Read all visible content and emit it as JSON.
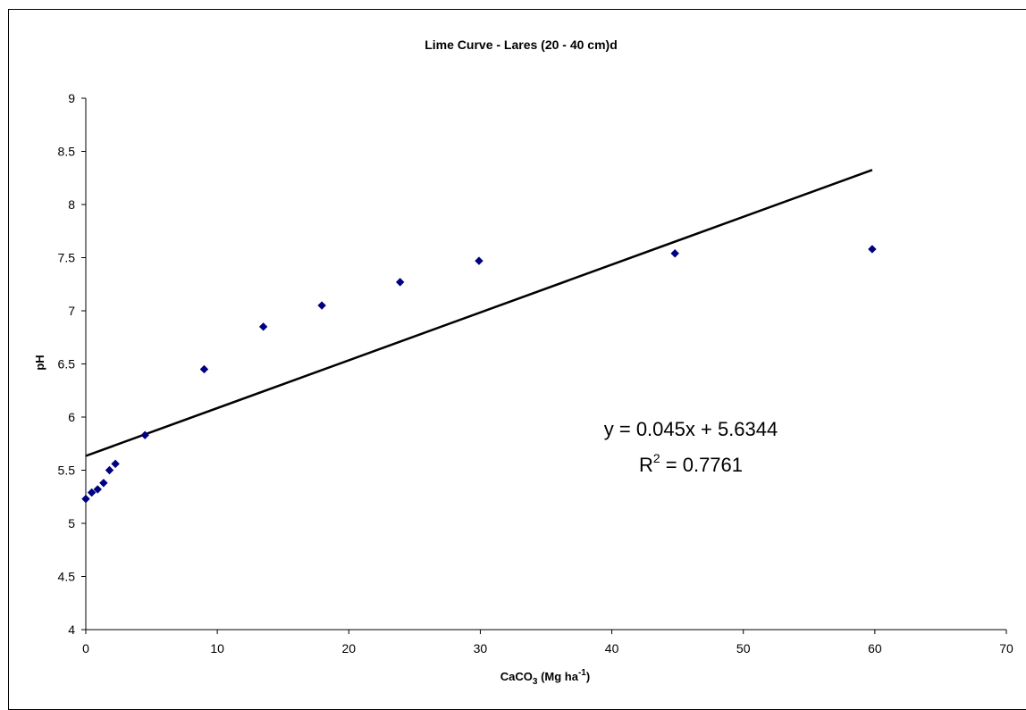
{
  "chart_data": {
    "type": "scatter",
    "title": "Lime Curve - Lares (20 - 40 cm)d",
    "xlabel": {
      "main": "CaCO",
      "sub": "3",
      "rest": " (Mg ha",
      "sup": "-1",
      "end": ")"
    },
    "ylabel": "pH",
    "xlim": [
      0,
      70
    ],
    "ylim": [
      4,
      9
    ],
    "x_ticks": [
      0,
      10,
      20,
      30,
      40,
      50,
      60,
      70
    ],
    "y_ticks": [
      4,
      4.5,
      5,
      5.5,
      6,
      6.5,
      7,
      7.5,
      8,
      8.5,
      9
    ],
    "grid": false,
    "series": [
      {
        "marker": "diamond",
        "color": "#000080",
        "points": [
          [
            0,
            5.23
          ],
          [
            0.45,
            5.29
          ],
          [
            0.9,
            5.32
          ],
          [
            1.35,
            5.38
          ],
          [
            1.8,
            5.5
          ],
          [
            2.25,
            5.56
          ],
          [
            4.5,
            5.83
          ],
          [
            9.0,
            6.45
          ],
          [
            13.5,
            6.85
          ],
          [
            17.95,
            7.05
          ],
          [
            23.9,
            7.27
          ],
          [
            29.9,
            7.47
          ],
          [
            44.8,
            7.54
          ],
          [
            59.8,
            7.58
          ]
        ]
      }
    ],
    "trendline": {
      "type": "linear",
      "slope": 0.045,
      "intercept": 5.6344,
      "x_range": [
        0,
        59.8
      ],
      "color": "#000000"
    },
    "equation_label": "y = 0.045x + 5.6344",
    "r2_label": {
      "prefix": "R",
      "sup": "2",
      "rest": " = 0.7761"
    }
  }
}
